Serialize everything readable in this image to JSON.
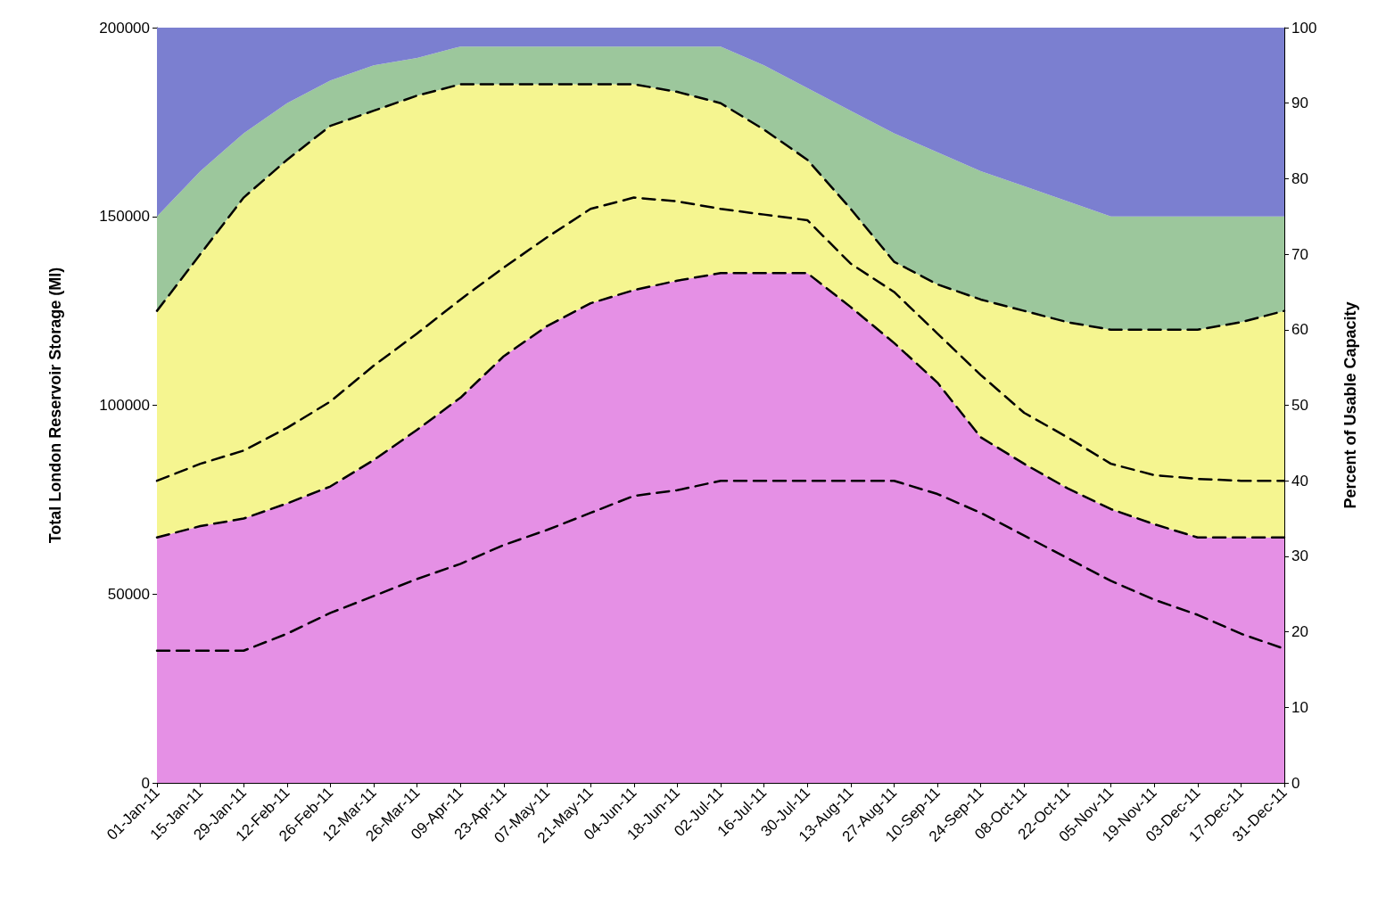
{
  "chart_data": {
    "type": "area",
    "stacked": true,
    "ylabel": "Total London Reservoir Storage (Ml)",
    "y2label": "Percent of Usable Capacity",
    "categories": [
      "01-Jan-11",
      "15-Jan-11",
      "29-Jan-11",
      "12-Feb-11",
      "26-Feb-11",
      "12-Mar-11",
      "26-Mar-11",
      "09-Apr-11",
      "23-Apr-11",
      "07-May-11",
      "21-May-11",
      "04-Jun-11",
      "18-Jun-11",
      "02-Jul-11",
      "16-Jul-11",
      "30-Jul-11",
      "13-Aug-11",
      "27-Aug-11",
      "10-Sep-11",
      "24-Sep-11",
      "08-Oct-11",
      "22-Oct-11",
      "05-Nov-11",
      "19-Nov-11",
      "03-Dec-11",
      "17-Dec-11",
      "31-Dec-11"
    ],
    "series": [
      {
        "color": "#e590e5",
        "line_style": "dashed",
        "values": [
          65000,
          68000,
          70000,
          74000,
          78500,
          85500,
          93500,
          102000,
          113000,
          121000,
          127000,
          130500,
          133000,
          135000,
          135000,
          135000,
          126000,
          116500,
          106000,
          91500,
          84500,
          78000,
          72500,
          68500,
          65000,
          65000,
          65000
        ]
      },
      {
        "color": "#f5f590",
        "line_style": "dashed",
        "values": [
          60000,
          72000,
          85000,
          91000,
          95500,
          92500,
          88500,
          83000,
          72000,
          64000,
          58000,
          54500,
          50000,
          45000,
          38000,
          30000,
          26000,
          21500,
          26000,
          36500,
          40500,
          44000,
          47500,
          51500,
          55000,
          57000,
          60000
        ]
      },
      {
        "color": "#9cc79c",
        "values": [
          25000,
          22000,
          17000,
          15000,
          12000,
          12000,
          10000,
          10000,
          10000,
          10000,
          10000,
          10000,
          12000,
          15000,
          17000,
          19000,
          26000,
          34000,
          35000,
          34000,
          33000,
          32000,
          30000,
          30000,
          30000,
          28000,
          25000
        ]
      },
      {
        "color": "#7b7fd0",
        "values": [
          50000,
          38000,
          28000,
          20000,
          14000,
          10000,
          8000,
          5000,
          5000,
          5000,
          5000,
          5000,
          5000,
          5000,
          10000,
          16000,
          22000,
          28000,
          33000,
          38000,
          42000,
          46000,
          50000,
          50000,
          50000,
          50000,
          50000
        ]
      },
      {
        "type": "line",
        "color": "#000000",
        "line_style": "dashed",
        "values": [
          80000,
          84500,
          88000,
          94000,
          101000,
          110500,
          119000,
          128000,
          136500,
          144500,
          152000,
          155000,
          154000,
          152000,
          150500,
          149000,
          137500,
          130000,
          119000,
          108000,
          98000,
          91500,
          84500,
          81500,
          80500,
          80000,
          80000
        ]
      },
      {
        "type": "line",
        "color": "#000000",
        "line_style": "dashed",
        "values": [
          35000,
          35000,
          35000,
          39500,
          45000,
          49500,
          54000,
          58000,
          63000,
          67000,
          71500,
          76000,
          77500,
          80000,
          80000,
          80000,
          80000,
          80000,
          76500,
          71500,
          65500,
          59500,
          53500,
          48500,
          44500,
          39500,
          35500
        ]
      }
    ],
    "ylim": [
      0,
      200000
    ],
    "yticks": [
      0,
      50000,
      100000,
      150000,
      200000
    ],
    "y2lim": [
      0,
      100
    ],
    "y2ticks": [
      0,
      10,
      20,
      30,
      40,
      50,
      60,
      70,
      80,
      90,
      100
    ],
    "marker": "none"
  }
}
